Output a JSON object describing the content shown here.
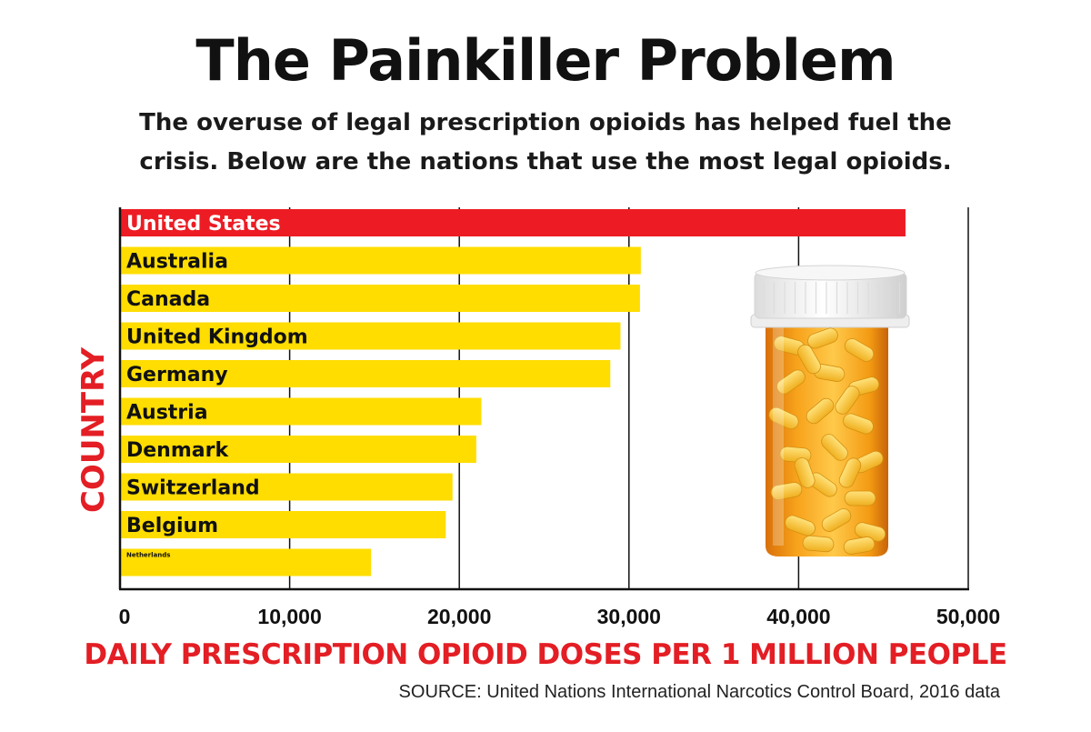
{
  "header": {
    "title": "The Painkiller Problem",
    "subtitle_line1": "The overuse of legal prescription opioids has helped fuel the",
    "subtitle_line2": "crisis. Below are the nations that use the most legal opioids."
  },
  "footer": {
    "source": "SOURCE: United Nations International Narcotics Control Board, 2016 data"
  },
  "colors": {
    "highlight_bar": "#ed1c24",
    "bar": "#ffdd00",
    "accent_text": "#e31e24"
  },
  "decoration": {
    "image": "pill-bottle-illustration"
  },
  "chart_data": {
    "type": "bar",
    "orientation": "horizontal",
    "categories": [
      "United States",
      "Australia",
      "Canada",
      "United Kingdom",
      "Germany",
      "Austria",
      "Denmark",
      "Switzerland",
      "Belgium",
      "Netherlands"
    ],
    "values": [
      46300,
      30700,
      30650,
      29500,
      28900,
      21300,
      21000,
      19600,
      19200,
      14800
    ],
    "highlight": "United States",
    "xlabel": "DAILY PRESCRIPTION OPIOID DOSES PER 1 MILLION PEOPLE",
    "ylabel": "COUNTRY",
    "xlim": [
      0,
      50000
    ],
    "xticks": [
      0,
      10000,
      20000,
      30000,
      40000,
      50000
    ],
    "xtick_labels": [
      "0",
      "10,000",
      "20,000",
      "30,000",
      "40,000",
      "50,000"
    ],
    "grid": "vertical"
  }
}
